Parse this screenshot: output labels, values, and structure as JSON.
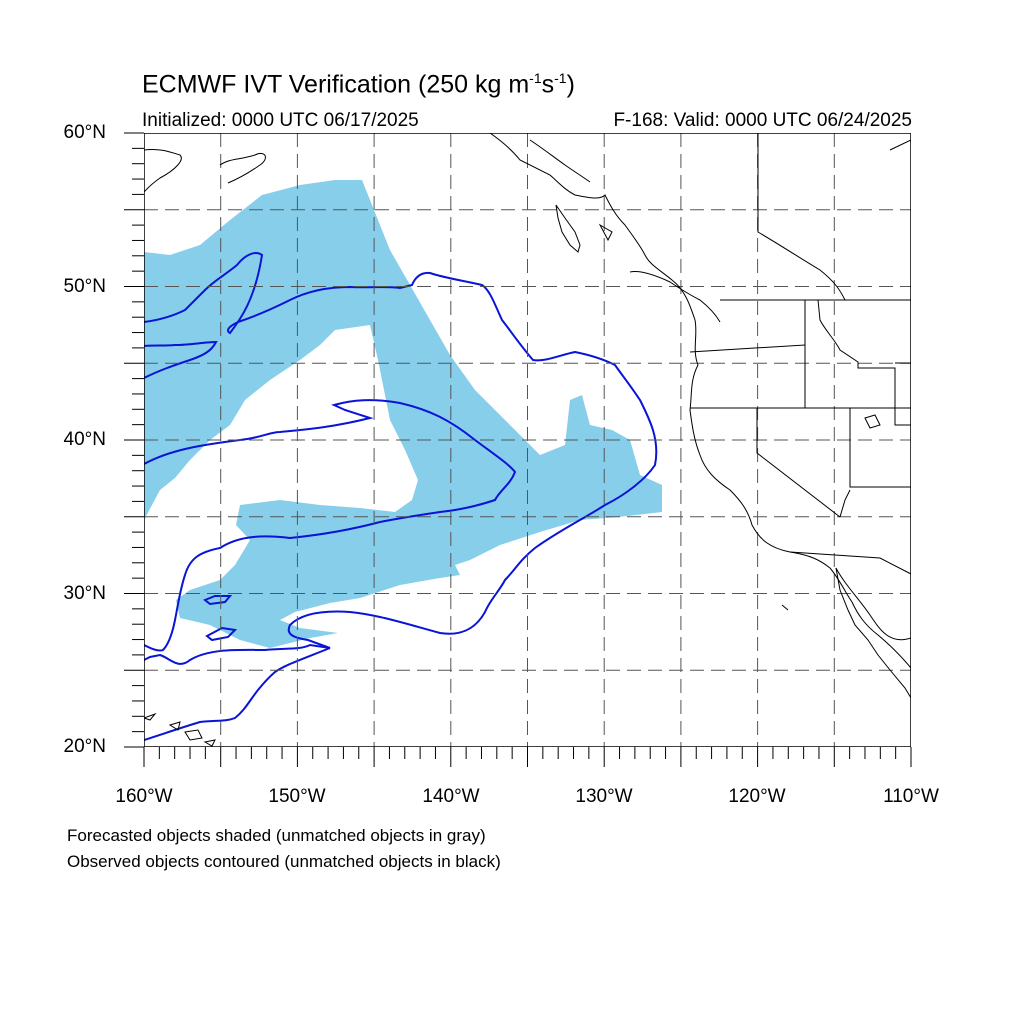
{
  "title": {
    "prefix": "ECMWF IVT Verification (250 kg m",
    "sup1": "-1",
    "mid": "s",
    "sup2": "-1",
    "suffix": ")"
  },
  "subtitle_left": "Initialized: 0000 UTC 06/17/2025",
  "subtitle_right": "F-168: Valid: 0000 UTC 06/24/2025",
  "lat_labels": [
    "60°N",
    "50°N",
    "40°N",
    "30°N",
    "20°N"
  ],
  "lon_labels": [
    "160°W",
    "150°W",
    "140°W",
    "130°W",
    "120°W",
    "110°W"
  ],
  "footnote_1": "Forecasted objects shaded (unmatched objects in gray)",
  "footnote_2": "Observed objects contoured (unmatched objects in black)",
  "colors": {
    "forecast_fill": "#87ceeb",
    "observed_contour": "#0a14d6",
    "coastline": "#000000",
    "grid": "#555555"
  },
  "extent": {
    "lon": [
      -160,
      -110
    ],
    "lat": [
      20,
      60
    ]
  }
}
